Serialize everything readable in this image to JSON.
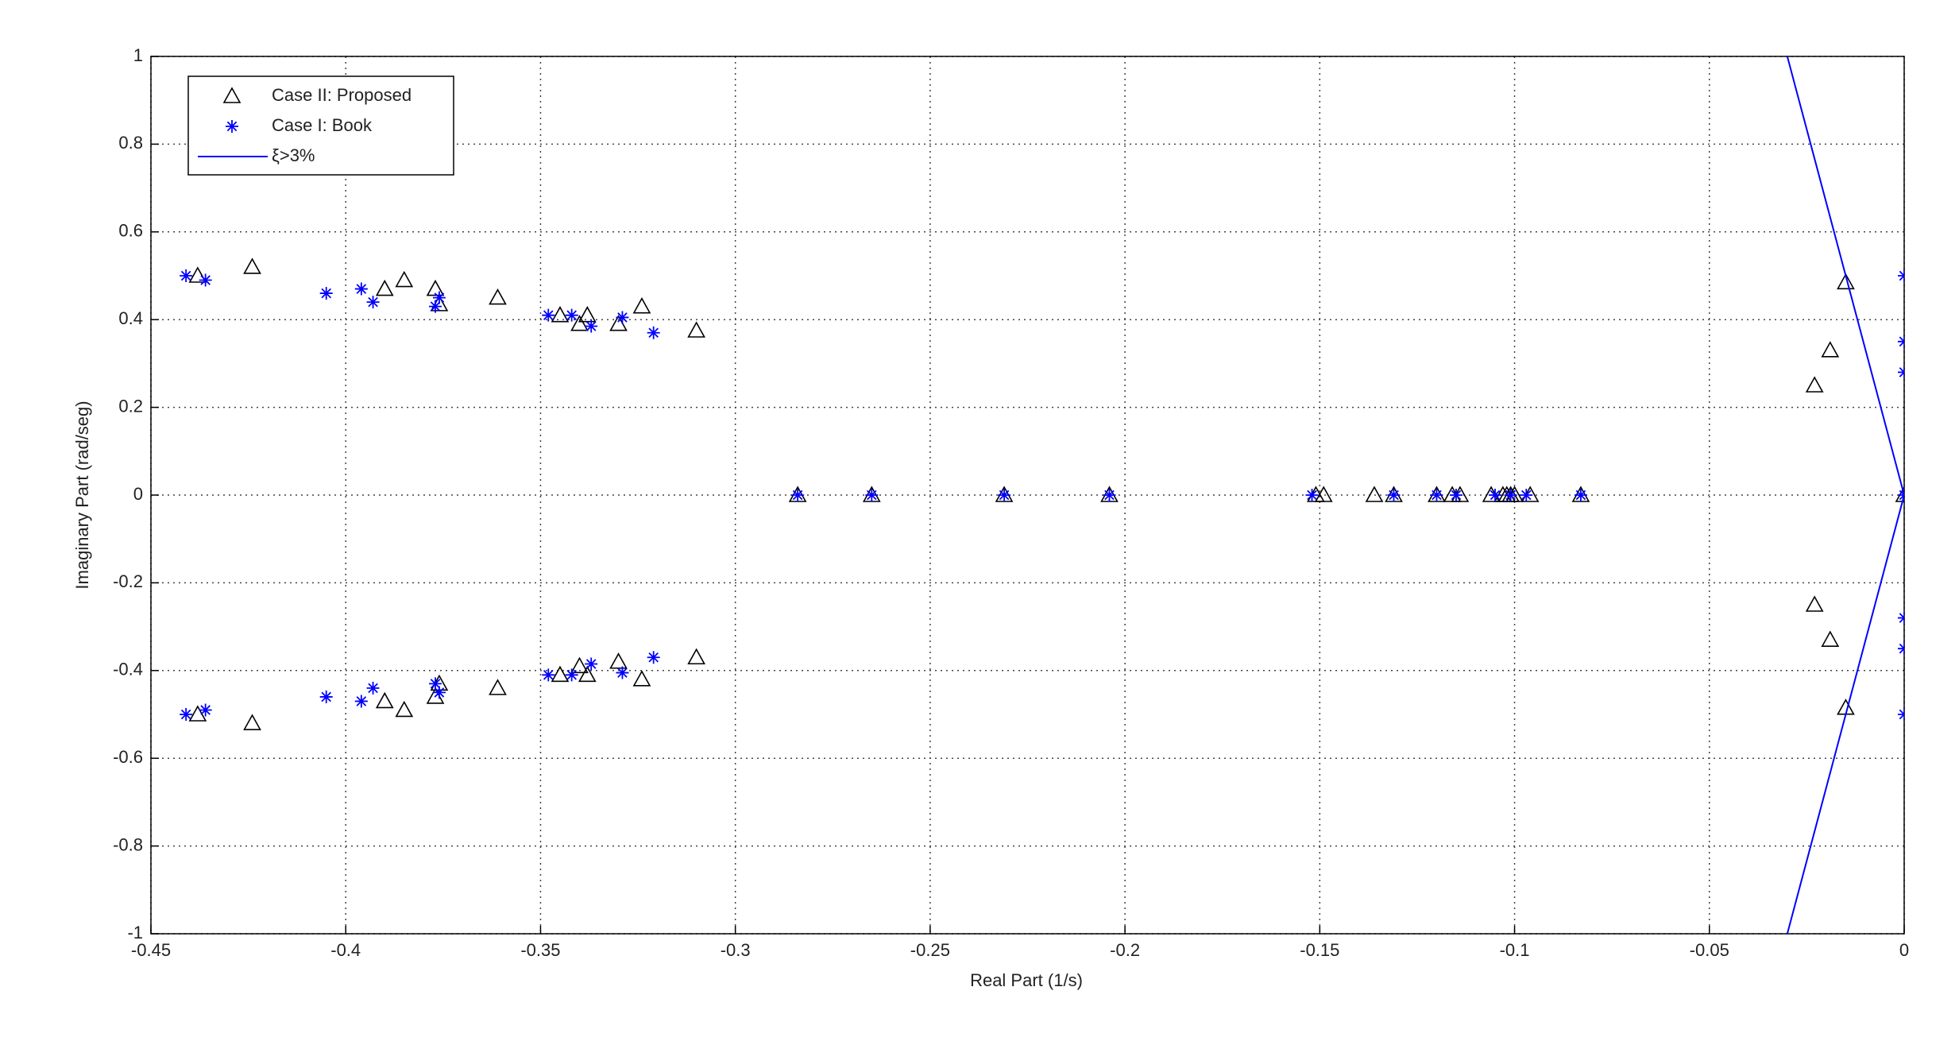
{
  "chart_data": {
    "type": "scatter",
    "xlabel": "Real Part (1/s)",
    "ylabel": "Imaginary Part (rad/seg)",
    "xlim": [
      -0.45,
      0
    ],
    "ylim": [
      -1,
      1
    ],
    "xticks": [
      -0.45,
      -0.4,
      -0.35,
      -0.3,
      -0.25,
      -0.2,
      -0.15,
      -0.1,
      -0.05,
      0
    ],
    "yticks": [
      -1,
      -0.8,
      -0.6,
      -0.4,
      -0.2,
      0,
      0.2,
      0.4,
      0.6,
      0.8,
      1
    ],
    "grid": true,
    "legend": "upper left",
    "series": [
      {
        "name": "Case II: Proposed",
        "color": "#000000",
        "marker": "triangle",
        "x": [
          -0.438,
          -0.424,
          -0.39,
          -0.385,
          -0.377,
          -0.376,
          -0.361,
          -0.345,
          -0.34,
          -0.338,
          -0.33,
          -0.324,
          -0.31,
          -0.438,
          -0.424,
          -0.39,
          -0.385,
          -0.377,
          -0.376,
          -0.361,
          -0.345,
          -0.34,
          -0.338,
          -0.33,
          -0.324,
          -0.31,
          -0.284,
          -0.265,
          -0.231,
          -0.204,
          -0.151,
          -0.149,
          -0.136,
          -0.131,
          -0.12,
          -0.116,
          -0.114,
          -0.106,
          -0.103,
          -0.102,
          -0.101,
          -0.1,
          -0.096,
          -0.083,
          0,
          -0.015,
          -0.019,
          -0.023,
          -0.015,
          -0.019,
          -0.023
        ],
        "y": [
          0.5,
          0.52,
          0.47,
          0.49,
          0.47,
          0.435,
          0.45,
          0.41,
          0.39,
          0.41,
          0.39,
          0.43,
          0.375,
          -0.5,
          -0.52,
          -0.47,
          -0.49,
          -0.46,
          -0.43,
          -0.44,
          -0.41,
          -0.39,
          -0.41,
          -0.38,
          -0.42,
          -0.37,
          0,
          0,
          0,
          0,
          0,
          0,
          0,
          0,
          0,
          0,
          0,
          0,
          0,
          0,
          0,
          0,
          0,
          0,
          0,
          0.485,
          0.33,
          0.25,
          -0.485,
          -0.33,
          -0.25
        ]
      },
      {
        "name": "Case I: Book",
        "color": "#0000ff",
        "marker": "star",
        "x": [
          -0.441,
          -0.436,
          -0.405,
          -0.396,
          -0.393,
          -0.377,
          -0.376,
          -0.348,
          -0.342,
          -0.337,
          -0.329,
          -0.321,
          -0.441,
          -0.436,
          -0.405,
          -0.396,
          -0.393,
          -0.377,
          -0.376,
          -0.348,
          -0.342,
          -0.337,
          -0.329,
          -0.321,
          -0.284,
          -0.265,
          -0.231,
          -0.204,
          -0.152,
          -0.131,
          -0.12,
          -0.115,
          -0.105,
          -0.101,
          -0.097,
          -0.083,
          0,
          0,
          0,
          0,
          0,
          0,
          0
        ],
        "y": [
          0.5,
          0.49,
          0.46,
          0.47,
          0.44,
          0.43,
          0.45,
          0.41,
          0.41,
          0.385,
          0.405,
          0.37,
          -0.5,
          -0.49,
          -0.46,
          -0.47,
          -0.44,
          -0.43,
          -0.45,
          -0.41,
          -0.41,
          -0.385,
          -0.405,
          -0.37,
          0,
          0,
          0,
          0,
          0,
          0,
          0,
          0,
          0,
          0,
          0,
          0,
          0,
          0.5,
          0.35,
          0.28,
          -0.5,
          -0.35,
          -0.28
        ]
      },
      {
        "name": "ξ>3%",
        "color": "#0000ff",
        "marker": "line",
        "x": [
          -0.03,
          0,
          -0.03
        ],
        "y": [
          1,
          0,
          -1
        ]
      }
    ]
  }
}
